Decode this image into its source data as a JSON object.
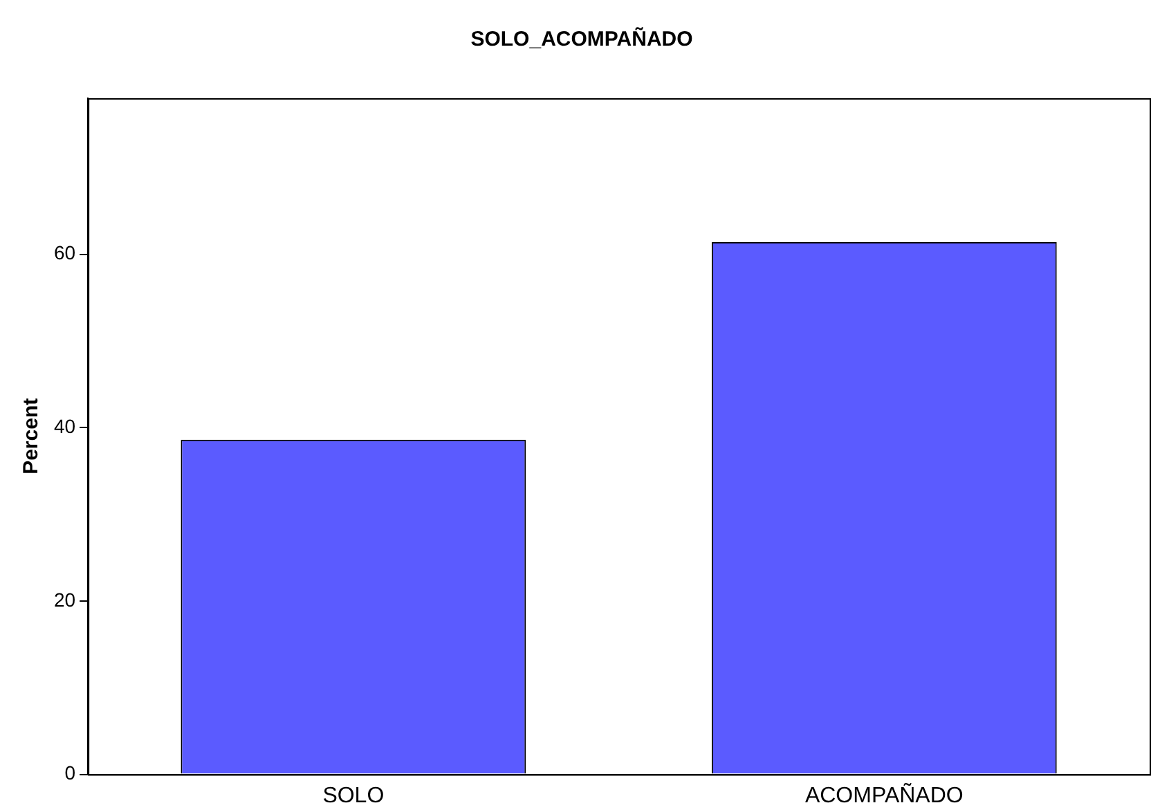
{
  "chart_data": {
    "type": "bar",
    "title": "SOLO_ACOMPAÑADO",
    "ylabel": "Percent",
    "categories": [
      "SOLO",
      "ACOMPAÑADO"
    ],
    "values": [
      38.6,
      61.4
    ],
    "color": "#5b5bff",
    "ylim": [
      0,
      78
    ],
    "yticks": [
      0,
      20,
      40,
      60
    ],
    "grid": false,
    "legend": false
  }
}
